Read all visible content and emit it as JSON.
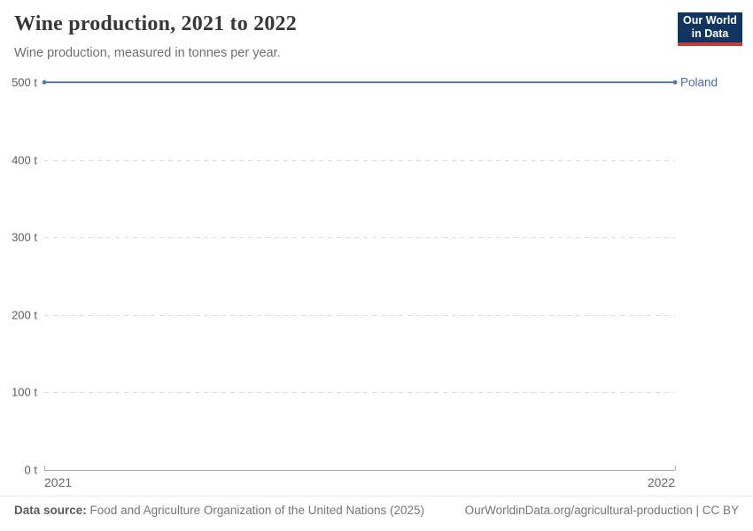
{
  "header": {
    "title": "Wine production, 2021 to 2022",
    "subtitle": "Wine production, measured in tonnes per year.",
    "logo": {
      "line1": "Our World",
      "line2": "in Data"
    }
  },
  "chart_data": {
    "type": "line",
    "title": "Wine production, 2021 to 2022",
    "subtitle": "Wine production, measured in tonnes per year.",
    "unit": "tonnes per year",
    "x": [
      2021,
      2022
    ],
    "xtick_labels": [
      "2021",
      "2022"
    ],
    "series": [
      {
        "name": "Poland",
        "values": [
          500,
          500
        ],
        "color": "#5b7ba6",
        "label_color": "#4a6ba1"
      }
    ],
    "ylim": [
      0,
      500
    ],
    "yticks": [
      {
        "value": 500,
        "label": "500 t"
      },
      {
        "value": 400,
        "label": "400 t"
      },
      {
        "value": 300,
        "label": "300 t"
      },
      {
        "value": 200,
        "label": "200 t"
      },
      {
        "value": 100,
        "label": "100 t"
      },
      {
        "value": 0,
        "label": "0 t"
      }
    ],
    "grid": true,
    "gridline_style": "dashed",
    "legend_position": "right-of-line-end"
  },
  "footer": {
    "source_label": "Data source:",
    "source_text": "Food and Agriculture Organization of the United Nations (2025)",
    "link_text": "OurWorldinData.org/agricultural-production",
    "separator": " | ",
    "license": "CC BY"
  },
  "colors": {
    "logo_bg": "#12355f",
    "logo_accent": "#c43c3c",
    "series_line": "#5b7ba6",
    "entity_label": "#4a6ba1",
    "gridline": "#dcdcdc",
    "axis": "#a8a8a8",
    "tick_text": "#5b5b5b",
    "title_text": "#383838",
    "subtitle_text": "#6e6e6e",
    "footer_text": "#757575"
  }
}
